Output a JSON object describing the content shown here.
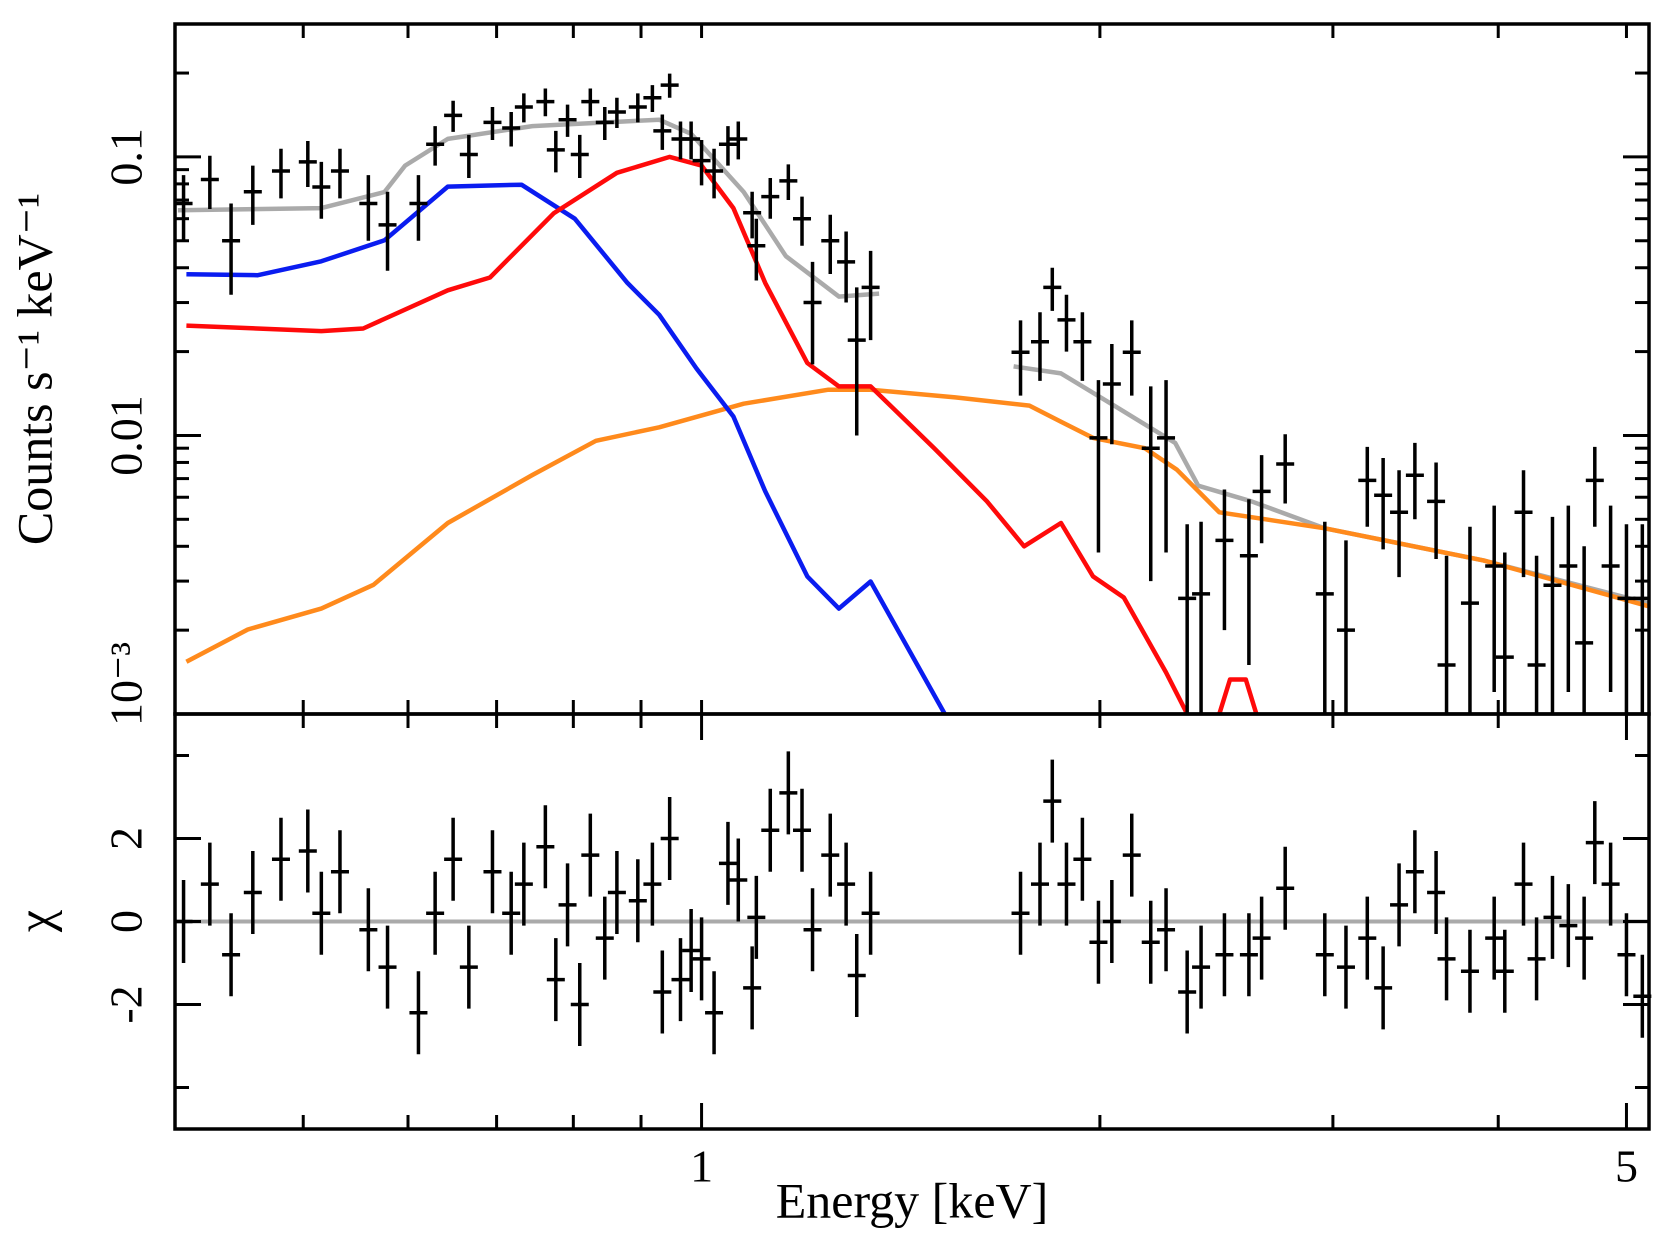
{
  "chart_data": [
    {
      "type": "spectrum",
      "ylabel": "Counts s⁻¹ keV⁻¹",
      "log_x": true,
      "log_y": true,
      "xlim": [
        0.4,
        5.2
      ],
      "ylim": [
        0.001,
        0.3
      ],
      "xminor": [
        0.5,
        0.6,
        0.7,
        0.8,
        0.9,
        1,
        2,
        3,
        4,
        5
      ],
      "yticks": [
        {
          "value": 0.001,
          "label": "10⁻³"
        },
        0.01,
        0.1
      ],
      "yminor": [
        0.002,
        0.003,
        0.004,
        0.005,
        0.006,
        0.007,
        0.008,
        0.009,
        0.02,
        0.03,
        0.04,
        0.05,
        0.06,
        0.07,
        0.08,
        0.09,
        0.2
      ],
      "points": {
        "color": "#000000",
        "x": [
          0.406,
          0.425,
          0.441,
          0.458,
          0.481,
          0.504,
          0.516,
          0.533,
          0.56,
          0.579,
          0.611,
          0.629,
          0.649,
          0.667,
          0.695,
          0.718,
          0.734,
          0.762,
          0.776,
          0.792,
          0.809,
          0.824,
          0.845,
          0.863,
          0.895,
          0.918,
          0.934,
          0.946,
          0.964,
          0.982,
          1.0,
          1.022,
          1.047,
          1.066,
          1.092,
          1.1,
          1.127,
          1.163,
          1.191,
          1.213,
          1.251,
          1.286,
          1.31,
          1.342,
          1.742,
          1.802,
          1.841,
          1.887,
          1.94,
          1.995,
          2.042,
          2.114,
          2.185,
          2.244,
          2.328,
          2.385,
          2.484,
          2.592,
          2.65,
          2.761,
          2.958,
          3.069,
          3.185,
          3.274,
          3.366,
          3.46,
          3.59,
          3.656,
          3.808,
          3.972,
          4.046,
          4.18,
          4.276,
          4.396,
          4.519,
          4.645,
          4.732,
          4.864,
          5.0,
          5.14
        ],
        "values": [
          0.068,
          0.083,
          0.05,
          0.075,
          0.089,
          0.096,
          0.078,
          0.089,
          0.068,
          0.057,
          0.068,
          0.111,
          0.141,
          0.102,
          0.133,
          0.127,
          0.151,
          0.158,
          0.106,
          0.136,
          0.102,
          0.158,
          0.133,
          0.145,
          0.151,
          0.163,
          0.124,
          0.181,
          0.116,
          0.116,
          0.097,
          0.089,
          0.111,
          0.116,
          0.063,
          0.048,
          0.072,
          0.082,
          0.06,
          0.03,
          0.05,
          0.042,
          0.022,
          0.034,
          0.0199,
          0.0217,
          0.034,
          0.026,
          0.0217,
          0.0098,
          0.0153,
          0.0199,
          0.009,
          0.0098,
          0.0026,
          0.0027,
          0.0042,
          0.0037,
          0.0063,
          0.0079,
          0.0027,
          0.002,
          0.0069,
          0.0061,
          0.0053,
          0.0072,
          0.0058,
          0.0015,
          0.0025,
          0.0034,
          0.0016,
          0.0053,
          0.0015,
          0.0029,
          0.0034,
          0.0018,
          0.0069,
          0.0034,
          0.0026,
          0.0026
        ],
        "yerr": [
          0.018,
          0.018,
          0.018,
          0.018,
          0.018,
          0.018,
          0.018,
          0.018,
          0.018,
          0.018,
          0.018,
          0.018,
          0.018,
          0.018,
          0.018,
          0.018,
          0.018,
          0.018,
          0.018,
          0.018,
          0.018,
          0.018,
          0.018,
          0.018,
          0.018,
          0.018,
          0.018,
          0.018,
          0.018,
          0.018,
          0.018,
          0.018,
          0.018,
          0.018,
          0.012,
          0.012,
          0.012,
          0.012,
          0.012,
          0.012,
          0.012,
          0.012,
          0.012,
          0.012,
          0.006,
          0.006,
          0.006,
          0.006,
          0.006,
          0.006,
          0.006,
          0.006,
          0.006,
          0.006,
          0.0022,
          0.0022,
          0.0022,
          0.0022,
          0.0022,
          0.0022,
          0.0022,
          0.0022,
          0.0022,
          0.0022,
          0.0022,
          0.0022,
          0.0022,
          0.0022,
          0.0022,
          0.0022,
          0.0022,
          0.0022,
          0.0022,
          0.0022,
          0.0022,
          0.0022,
          0.0022,
          0.0022,
          0.0022,
          0.0022
        ]
      },
      "models": [
        {
          "color": "#aaaaaa",
          "x": [
            0.402,
            0.516,
            0.576,
            0.597,
            0.643,
            0.745,
            0.929,
            0.982,
            1.076,
            1.158,
            1.27,
            1.362,
            1.5,
            1.721,
            1.869,
            2.05,
            2.28,
            2.373,
            2.603,
            2.958,
            3.899,
            5.19
          ],
          "values": [
            0.0643,
            0.0655,
            0.0748,
            0.0931,
            0.116,
            0.129,
            0.136,
            0.121,
            0.0748,
            0.044,
            0.0315,
            0.0323,
            null,
            0.0177,
            0.0167,
            0.0128,
            0.0094,
            0.0066,
            0.0058,
            0.00464,
            0.00356,
            0.0025
          ]
        },
        {
          "color": "#ff8a1c",
          "x": [
            0.408,
            0.454,
            0.516,
            0.565,
            0.643,
            0.745,
            0.832,
            0.929,
            1.076,
            1.247,
            1.342,
            1.555,
            1.769,
            1.869,
            1.976,
            2.163,
            2.287,
            2.462,
            2.958,
            3.899,
            5.19
          ],
          "values": [
            0.00154,
            0.00201,
            0.00239,
            0.00291,
            0.00485,
            0.00721,
            0.00957,
            0.0107,
            0.013,
            0.0146,
            0.0146,
            0.0137,
            0.0128,
            0.0112,
            0.0098,
            0.009,
            0.00753,
            0.0053,
            0.00464,
            0.00356,
            0.00244
          ]
        },
        {
          "color": "#0a1cf0",
          "x": [
            0.408,
            0.462,
            0.516,
            0.576,
            0.643,
            0.731,
            0.802,
            0.879,
            0.929,
            0.991,
            1.057,
            1.117,
            1.202,
            1.27,
            1.342,
            1.527
          ],
          "values": [
            0.0379,
            0.0376,
            0.0422,
            0.0502,
            0.0782,
            0.0795,
            0.06,
            0.0353,
            0.0271,
            0.0174,
            0.0117,
            0.0063,
            0.00312,
            0.00239,
            0.00299,
            0.001
          ]
        },
        {
          "color": "#ff0a0a",
          "x": [
            0.408,
            0.516,
            0.555,
            0.643,
            0.692,
            0.773,
            0.863,
            0.946,
            1.0,
            1.057,
            1.117,
            1.202,
            1.27,
            1.342,
            1.499,
            1.643,
            1.753,
            1.869,
            1.976,
            2.085,
            2.244,
            2.328,
            2.4,
            2.462,
            2.508,
            2.578,
            2.626
          ],
          "values": [
            0.0248,
            0.0237,
            0.0242,
            0.0332,
            0.0369,
            0.0627,
            0.0877,
            0.1,
            0.0931,
            0.0655,
            0.0353,
            0.0182,
            0.015,
            0.015,
            0.009,
            0.0058,
            0.004,
            0.00485,
            0.00312,
            0.00262,
            0.00141,
            0.001,
            null,
            0.001,
            0.00133,
            0.00133,
            0.001
          ]
        }
      ]
    },
    {
      "type": "residuals",
      "ylabel": "χ",
      "xlabel": "Energy [keV]",
      "log_x": true,
      "xlim": [
        0.4,
        5.2
      ],
      "ylim": [
        -5,
        5
      ],
      "xticks": [
        1,
        5
      ],
      "xminor": [
        0.5,
        0.6,
        0.7,
        0.8,
        0.9,
        2,
        3,
        4
      ],
      "yticks": [
        -2,
        0,
        2
      ],
      "yminor": [
        -4,
        4
      ],
      "model": {
        "color": "#aaaaaa",
        "value": 0
      },
      "color": "#000000",
      "err": 1,
      "values": [
        0.0,
        0.9,
        -0.8,
        0.7,
        1.5,
        1.7,
        0.2,
        1.2,
        -0.2,
        -1.1,
        -2.2,
        0.2,
        1.5,
        -1.1,
        1.2,
        0.2,
        0.9,
        1.8,
        -1.4,
        0.4,
        -2.0,
        1.6,
        -0.4,
        0.7,
        0.5,
        0.9,
        -1.7,
        2.0,
        -1.4,
        -0.7,
        -0.9,
        -2.2,
        1.4,
        1.0,
        -1.6,
        0.1,
        2.2,
        3.1,
        2.2,
        -0.2,
        1.6,
        0.9,
        -1.3,
        0.2,
        0.2,
        0.9,
        2.9,
        0.9,
        1.5,
        -0.5,
        0.0,
        1.6,
        -0.5,
        -0.2,
        -1.7,
        -1.1,
        -0.8,
        -0.8,
        -0.4,
        0.8,
        -0.8,
        -1.1,
        -0.4,
        -1.6,
        0.4,
        1.2,
        0.7,
        -0.9,
        -1.2,
        -0.4,
        -1.2,
        0.9,
        -0.9,
        0.1,
        -0.1,
        -0.4,
        1.9,
        0.9,
        -0.8,
        -1.8
      ]
    }
  ]
}
